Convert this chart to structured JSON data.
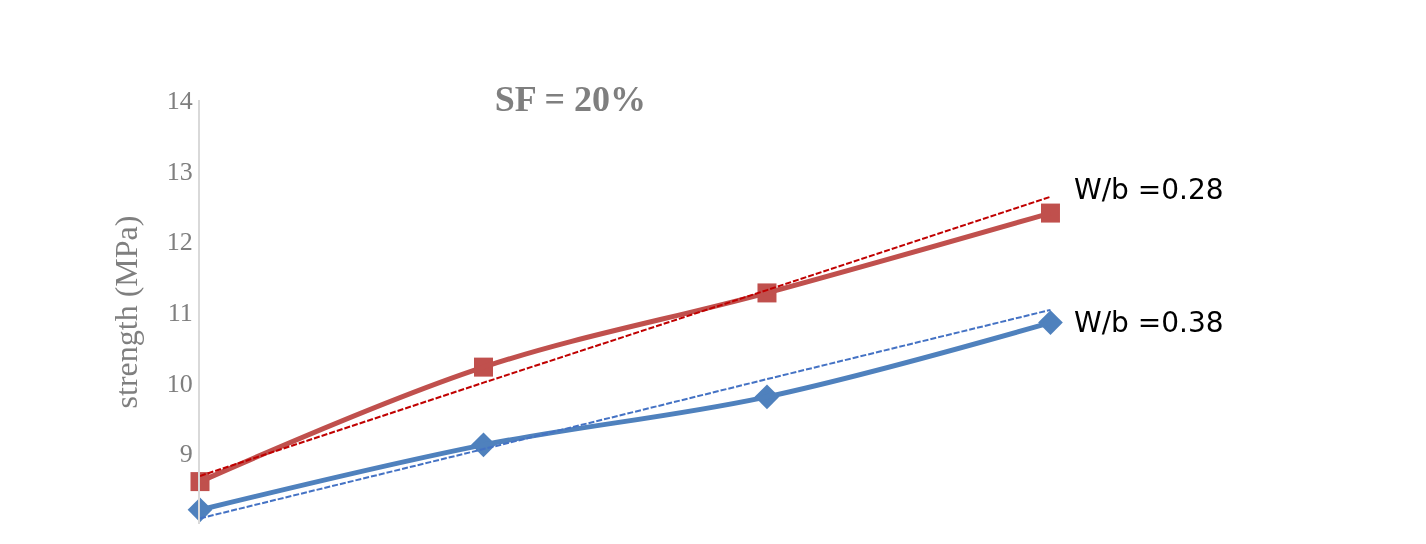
{
  "chart_data": {
    "type": "line",
    "title": "SF = 20%",
    "ylabel": "strength (MPa)",
    "categories": [
      null,
      null,
      null,
      null
    ],
    "series": [
      {
        "name": "W/b =0.28",
        "color": "#c0504d",
        "values": [
          8.6,
          10.22,
          11.27,
          12.4
        ],
        "marker": "square"
      },
      {
        "name": "W/b =0.38",
        "color": "#4f81bd",
        "values": [
          8.2,
          9.12,
          9.8,
          10.85
        ],
        "marker": "diamond"
      },
      {
        "color": "#c00000",
        "values": [
          8.68,
          10.0,
          11.31,
          12.63
        ],
        "line_style": "dashed",
        "marker": "none"
      },
      {
        "color": "#4472c4",
        "values": [
          8.08,
          9.06,
          10.05,
          11.03
        ],
        "line_style": "dashed",
        "marker": "none"
      }
    ],
    "ylim": [
      8,
      14
    ],
    "yticks": [
      9,
      10,
      11,
      12,
      13,
      14
    ]
  }
}
